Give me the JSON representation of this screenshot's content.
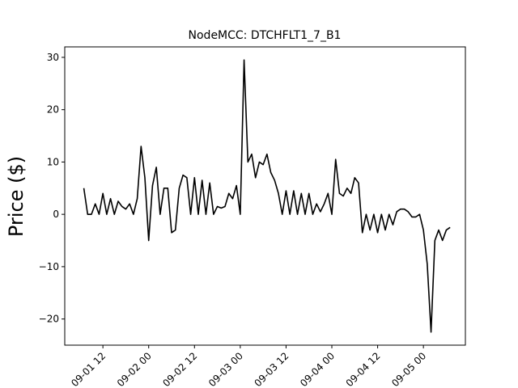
{
  "chart_data": {
    "type": "line",
    "title": "NodeMCC: DTCHFLT1_7_B1",
    "y_label": "Price ($)",
    "x": [
      "09-01 07",
      "09-01 08",
      "09-01 09",
      "09-01 10",
      "09-01 11",
      "09-01 12",
      "09-01 13",
      "09-01 14",
      "09-01 15",
      "09-01 16",
      "09-01 17",
      "09-01 18",
      "09-01 19",
      "09-01 20",
      "09-01 21",
      "09-01 22",
      "09-01 23",
      "09-02 00",
      "09-02 01",
      "09-02 02",
      "09-02 03",
      "09-02 04",
      "09-02 05",
      "09-02 06",
      "09-02 07",
      "09-02 08",
      "09-02 09",
      "09-02 10",
      "09-02 11",
      "09-02 12",
      "09-02 13",
      "09-02 14",
      "09-02 15",
      "09-02 16",
      "09-02 17",
      "09-02 18",
      "09-02 19",
      "09-02 20",
      "09-02 21",
      "09-02 22",
      "09-02 23",
      "09-03 00",
      "09-03 01",
      "09-03 02",
      "09-03 03",
      "09-03 04",
      "09-03 05",
      "09-03 06",
      "09-03 07",
      "09-03 08",
      "09-03 09",
      "09-03 10",
      "09-03 11",
      "09-03 12",
      "09-03 13",
      "09-03 14",
      "09-03 15",
      "09-03 16",
      "09-03 17",
      "09-03 18",
      "09-03 19",
      "09-03 20",
      "09-03 21",
      "09-03 22",
      "09-03 23",
      "09-04 00",
      "09-04 01",
      "09-04 02",
      "09-04 03",
      "09-04 04",
      "09-04 05",
      "09-04 06",
      "09-04 07",
      "09-04 08",
      "09-04 09",
      "09-04 10",
      "09-04 11",
      "09-04 12",
      "09-04 13",
      "09-04 14",
      "09-04 15",
      "09-04 16",
      "09-04 17",
      "09-04 18",
      "09-04 19",
      "09-04 20",
      "09-04 21",
      "09-04 22",
      "09-04 23",
      "09-05 00",
      "09-05 01",
      "09-05 02",
      "09-05 03",
      "09-05 04",
      "09-05 05",
      "09-05 06",
      "09-05 07"
    ],
    "series": [
      {
        "color": "#000000",
        "values": [
          5,
          0,
          0,
          2,
          0,
          4,
          0,
          3,
          0,
          2.5,
          1.5,
          1,
          2,
          0,
          3,
          13,
          7,
          -5,
          5.5,
          9,
          0,
          5,
          5,
          -3.5,
          -3,
          5,
          7.5,
          7,
          0,
          7,
          0,
          6.5,
          0,
          6,
          0,
          1.5,
          1.2,
          1.5,
          4,
          3,
          5.5,
          0,
          29.5,
          10,
          11.5,
          7,
          10,
          9.5,
          11.5,
          8,
          6.5,
          4,
          0,
          4.5,
          0,
          4.5,
          0,
          4,
          0,
          4,
          0,
          2,
          0.5,
          2,
          4,
          0,
          10.5,
          4,
          3.5,
          5,
          4,
          7,
          6,
          -3.5,
          0,
          -3,
          0,
          -3.5,
          0,
          -3,
          0,
          -2,
          0.5,
          1,
          1,
          0.5,
          -0.5,
          -0.5,
          0,
          -3,
          -9.5,
          -22.5,
          -5,
          -3,
          -5,
          -3,
          -2.5
        ]
      }
    ],
    "xlim": [
      "09-01 02",
      "09-05 11"
    ],
    "xticks": [
      "09-01 12",
      "09-02 00",
      "09-02 12",
      "09-03 00",
      "09-03 12",
      "09-04 00",
      "09-04 12",
      "09-05 00"
    ],
    "ylim": [
      -25,
      32
    ],
    "yticks": [
      {
        "value": -20,
        "label": "−20"
      },
      {
        "value": -10,
        "label": "−10"
      },
      0,
      10,
      20,
      30
    ]
  }
}
